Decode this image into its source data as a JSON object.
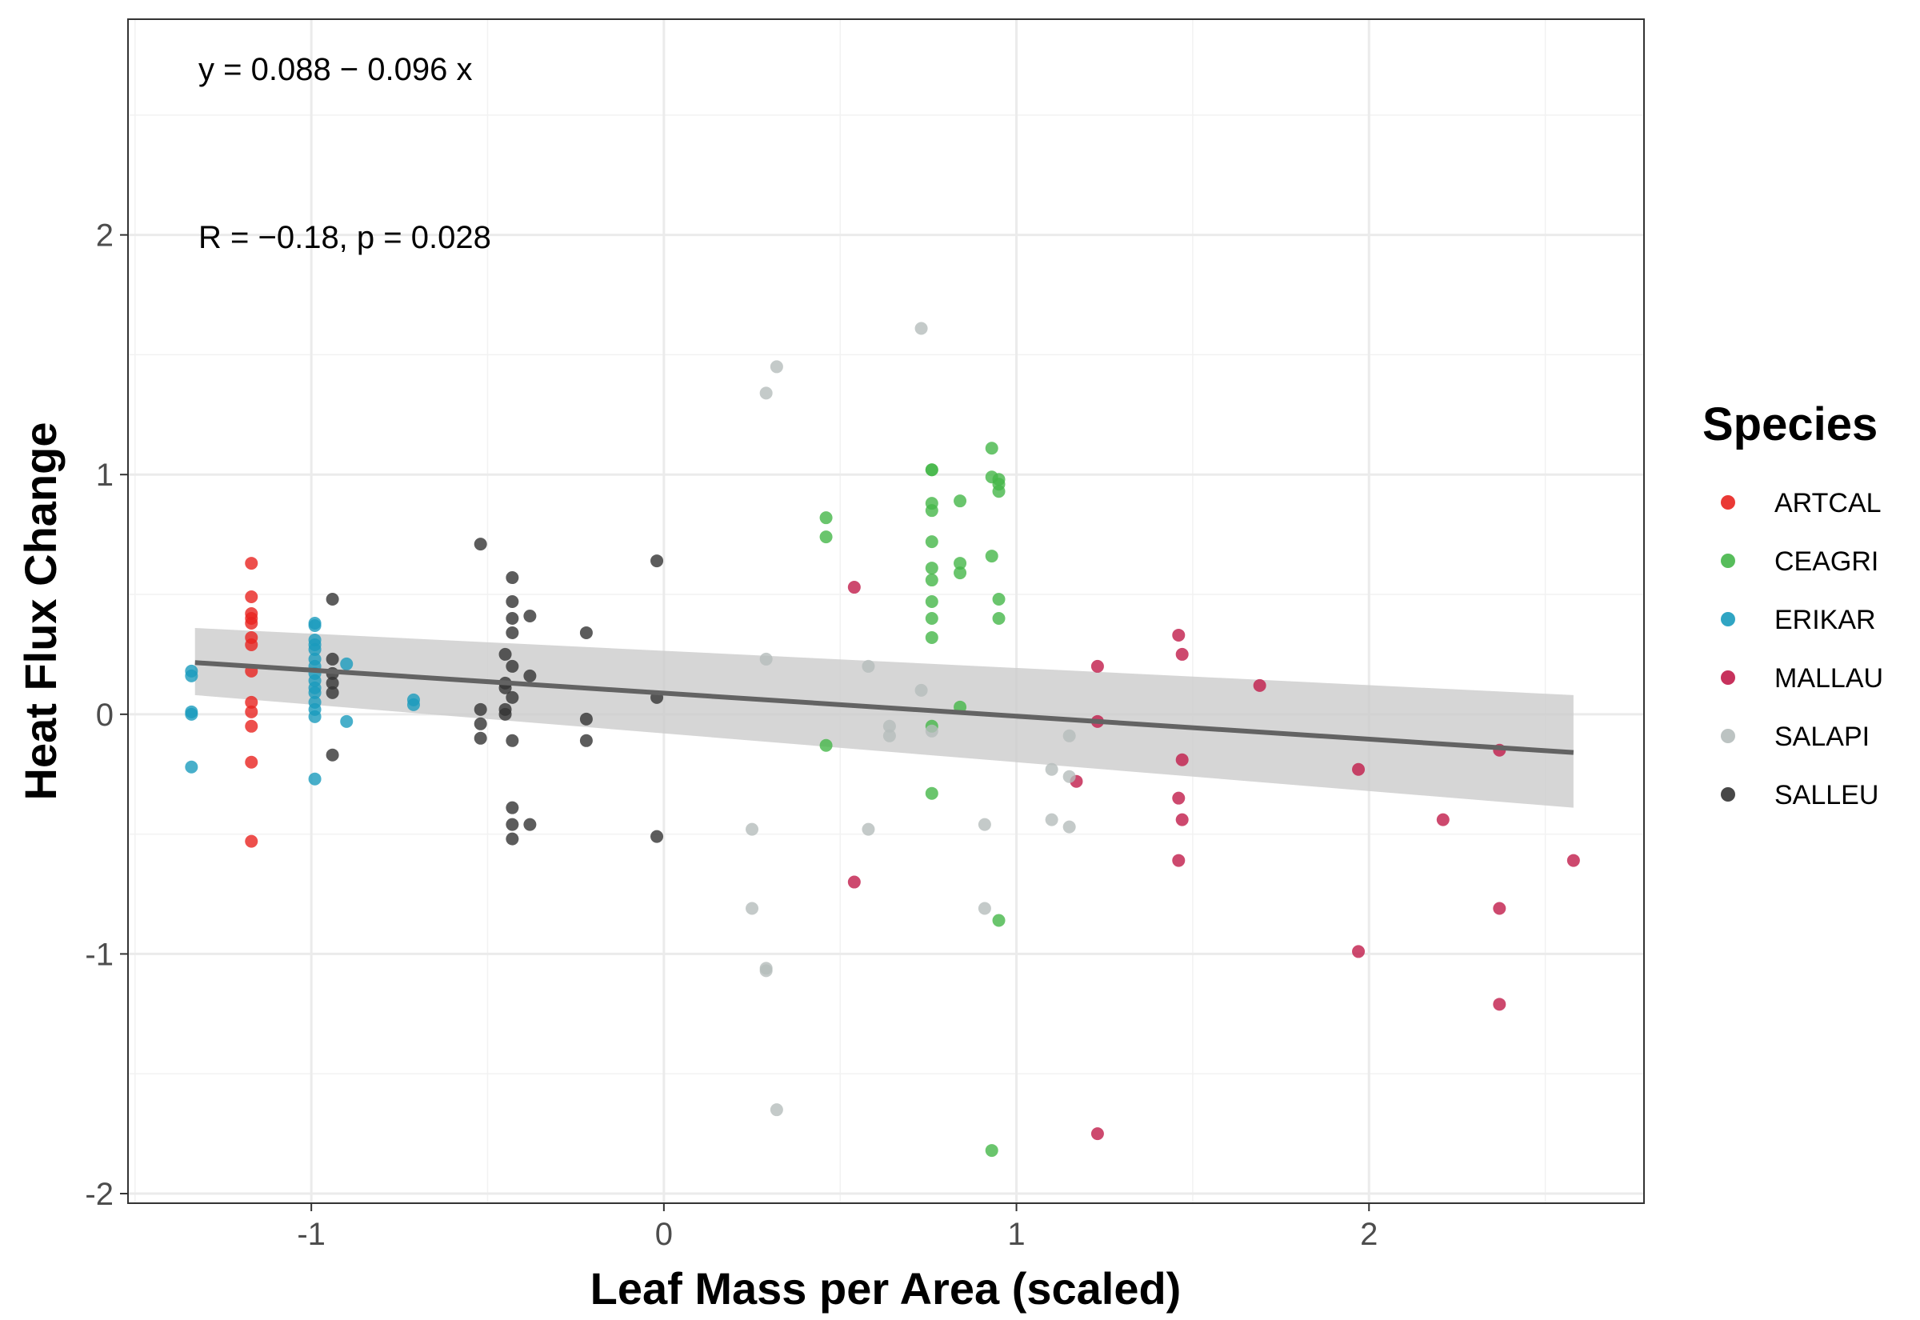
{
  "chart_data": {
    "type": "scatter",
    "xlabel": "Leaf Mass per Area (scaled)",
    "ylabel": "Heat Flux Change",
    "xlim": [
      -1.52,
      2.78
    ],
    "ylim": [
      -2.04,
      2.9
    ],
    "x_ticks": [
      -1,
      0,
      1,
      2
    ],
    "y_ticks": [
      -2,
      -1,
      0,
      1,
      2
    ],
    "x_tick_labels": [
      "-1",
      "0",
      "1",
      "2"
    ],
    "y_tick_labels": [
      "-2",
      "-1",
      "0",
      "1",
      "2"
    ],
    "grid": true,
    "legend": {
      "title": "Species",
      "position": "right"
    },
    "annotations": {
      "equation": "y = 0.088 − 0.096 x",
      "stats": "R = −0.18, p = 0.028"
    },
    "regression": {
      "intercept": 0.088,
      "slope": -0.096,
      "x_range": [
        -1.33,
        2.58
      ],
      "ci_lower": [
        0.08,
        -0.39
      ],
      "ci_upper": [
        0.36,
        0.08
      ],
      "line_color": "#636363",
      "band_color": "#cccccc"
    },
    "series": [
      {
        "name": "ARTCAL",
        "color": "#e8231f",
        "points": [
          [
            -1.17,
            0.63
          ],
          [
            -1.17,
            0.49
          ],
          [
            -1.17,
            0.42
          ],
          [
            -1.17,
            0.4
          ],
          [
            -1.17,
            0.38
          ],
          [
            -1.17,
            0.32
          ],
          [
            -1.17,
            0.29
          ],
          [
            -1.17,
            0.18
          ],
          [
            -1.17,
            0.05
          ],
          [
            -1.17,
            0.01
          ],
          [
            -1.17,
            -0.05
          ],
          [
            -1.17,
            -0.2
          ],
          [
            -1.17,
            -0.53
          ]
        ]
      },
      {
        "name": "CEAGRI",
        "color": "#45b649",
        "points": [
          [
            0.46,
            0.82
          ],
          [
            0.46,
            0.74
          ],
          [
            0.46,
            -0.13
          ],
          [
            0.76,
            1.02
          ],
          [
            0.76,
            1.02
          ],
          [
            0.76,
            0.88
          ],
          [
            0.76,
            0.85
          ],
          [
            0.76,
            0.72
          ],
          [
            0.76,
            0.61
          ],
          [
            0.76,
            0.56
          ],
          [
            0.76,
            0.47
          ],
          [
            0.76,
            0.4
          ],
          [
            0.76,
            0.32
          ],
          [
            0.76,
            -0.05
          ],
          [
            0.76,
            -0.33
          ],
          [
            0.84,
            0.89
          ],
          [
            0.84,
            0.63
          ],
          [
            0.84,
            0.59
          ],
          [
            0.84,
            0.03
          ],
          [
            0.93,
            1.11
          ],
          [
            0.93,
            0.99
          ],
          [
            0.93,
            0.66
          ],
          [
            0.93,
            -1.82
          ],
          [
            0.95,
            0.98
          ],
          [
            0.95,
            0.96
          ],
          [
            0.95,
            0.93
          ],
          [
            0.95,
            0.48
          ],
          [
            0.95,
            0.4
          ],
          [
            0.95,
            -0.86
          ]
        ]
      },
      {
        "name": "ERIKAR",
        "color": "#1a9bbd",
        "points": [
          [
            -1.34,
            0.18
          ],
          [
            -1.34,
            0.16
          ],
          [
            -1.34,
            0.01
          ],
          [
            -1.34,
            0.0
          ],
          [
            -1.34,
            -0.22
          ],
          [
            -0.99,
            0.38
          ],
          [
            -0.99,
            0.37
          ],
          [
            -0.99,
            0.31
          ],
          [
            -0.99,
            0.29
          ],
          [
            -0.99,
            0.27
          ],
          [
            -0.99,
            0.23
          ],
          [
            -0.99,
            0.2
          ],
          [
            -0.99,
            0.17
          ],
          [
            -0.99,
            0.14
          ],
          [
            -0.99,
            0.11
          ],
          [
            -0.99,
            0.09
          ],
          [
            -0.99,
            0.05
          ],
          [
            -0.99,
            0.02
          ],
          [
            -0.99,
            -0.01
          ],
          [
            -0.99,
            -0.27
          ],
          [
            -0.9,
            0.21
          ],
          [
            -0.9,
            -0.03
          ],
          [
            -0.71,
            0.06
          ],
          [
            -0.71,
            0.04
          ]
        ]
      },
      {
        "name": "MALLAU",
        "color": "#c11b4a",
        "points": [
          [
            0.54,
            0.53
          ],
          [
            0.54,
            -0.7
          ],
          [
            1.17,
            -0.28
          ],
          [
            1.23,
            0.2
          ],
          [
            1.23,
            -0.03
          ],
          [
            1.23,
            -1.75
          ],
          [
            1.46,
            0.33
          ],
          [
            1.46,
            -0.35
          ],
          [
            1.46,
            -0.61
          ],
          [
            1.47,
            0.25
          ],
          [
            1.47,
            -0.19
          ],
          [
            1.47,
            -0.44
          ],
          [
            1.69,
            0.12
          ],
          [
            1.97,
            -0.23
          ],
          [
            1.97,
            -0.99
          ],
          [
            2.21,
            -0.44
          ],
          [
            2.37,
            -0.15
          ],
          [
            2.37,
            -0.81
          ],
          [
            2.37,
            -1.21
          ],
          [
            2.58,
            -0.61
          ]
        ]
      },
      {
        "name": "SALAPI",
        "color": "#b5bdbb",
        "points": [
          [
            0.25,
            -0.48
          ],
          [
            0.25,
            -0.81
          ],
          [
            0.29,
            1.34
          ],
          [
            0.29,
            0.23
          ],
          [
            0.29,
            -1.06
          ],
          [
            0.29,
            -1.07
          ],
          [
            0.32,
            1.45
          ],
          [
            0.32,
            -1.65
          ],
          [
            0.58,
            0.2
          ],
          [
            0.58,
            -0.48
          ],
          [
            0.64,
            -0.05
          ],
          [
            0.64,
            -0.09
          ],
          [
            0.73,
            1.61
          ],
          [
            0.73,
            0.1
          ],
          [
            0.76,
            -0.07
          ],
          [
            0.91,
            -0.46
          ],
          [
            0.91,
            -0.81
          ],
          [
            1.1,
            -0.23
          ],
          [
            1.1,
            -0.44
          ],
          [
            1.15,
            -0.09
          ],
          [
            1.15,
            -0.26
          ],
          [
            1.15,
            -0.47
          ]
        ]
      },
      {
        "name": "SALLEU",
        "color": "#333333",
        "points": [
          [
            -0.94,
            0.48
          ],
          [
            -0.94,
            0.23
          ],
          [
            -0.94,
            0.17
          ],
          [
            -0.94,
            0.13
          ],
          [
            -0.94,
            0.09
          ],
          [
            -0.94,
            -0.17
          ],
          [
            -0.52,
            0.71
          ],
          [
            -0.52,
            0.02
          ],
          [
            -0.52,
            -0.04
          ],
          [
            -0.52,
            -0.1
          ],
          [
            -0.45,
            0.25
          ],
          [
            -0.45,
            0.13
          ],
          [
            -0.45,
            0.11
          ],
          [
            -0.45,
            0.02
          ],
          [
            -0.45,
            0.0
          ],
          [
            -0.43,
            0.57
          ],
          [
            -0.43,
            0.47
          ],
          [
            -0.43,
            0.4
          ],
          [
            -0.43,
            0.34
          ],
          [
            -0.43,
            0.2
          ],
          [
            -0.43,
            0.07
          ],
          [
            -0.43,
            -0.11
          ],
          [
            -0.43,
            -0.39
          ],
          [
            -0.43,
            -0.46
          ],
          [
            -0.43,
            -0.52
          ],
          [
            -0.38,
            0.41
          ],
          [
            -0.38,
            0.16
          ],
          [
            -0.38,
            -0.46
          ],
          [
            -0.22,
            0.34
          ],
          [
            -0.22,
            -0.02
          ],
          [
            -0.22,
            -0.11
          ],
          [
            -0.02,
            0.64
          ],
          [
            -0.02,
            0.07
          ],
          [
            -0.02,
            -0.51
          ]
        ]
      }
    ]
  }
}
